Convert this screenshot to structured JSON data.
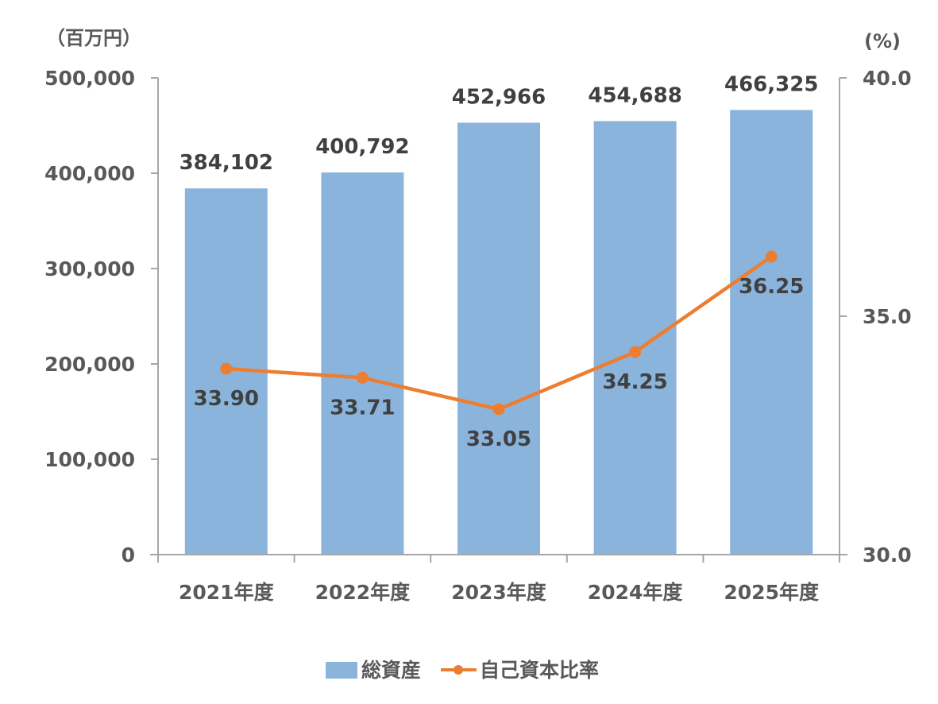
{
  "chart_data": {
    "type": "bar+line",
    "title": "",
    "categories": [
      "2021年度",
      "2022年度",
      "2023年度",
      "2024年度",
      "2025年度"
    ],
    "series": [
      {
        "name": "総資産",
        "type": "bar",
        "axis": "left",
        "color": "#8AB4DC",
        "values": [
          384102,
          400792,
          452966,
          454688,
          466325
        ],
        "labels": [
          "384,102",
          "400,792",
          "452,966",
          "454,688",
          "466,325"
        ]
      },
      {
        "name": "自己資本比率",
        "type": "line",
        "axis": "right",
        "color": "#ED7D31",
        "values": [
          33.9,
          33.71,
          33.05,
          34.25,
          36.25
        ],
        "labels": [
          "33.90",
          "33.71",
          "33.05",
          "34.25",
          "36.25"
        ]
      }
    ],
    "y_left": {
      "label": "（百万円）",
      "ylim": [
        0,
        500000
      ],
      "ticks": [
        0,
        100000,
        200000,
        300000,
        400000,
        500000
      ],
      "tick_labels": [
        "0",
        "100,000",
        "200,000",
        "300,000",
        "400,000",
        "500,000"
      ]
    },
    "y_right": {
      "label": "(%)",
      "ylim": [
        30.0,
        40.0
      ],
      "ticks": [
        30.0,
        35.0,
        40.0
      ],
      "tick_labels": [
        "30.0",
        "35.0",
        "40.0"
      ]
    },
    "grid": false,
    "legend": {
      "position": "bottom",
      "entries": [
        "総資産",
        "自己資本比率"
      ]
    }
  }
}
